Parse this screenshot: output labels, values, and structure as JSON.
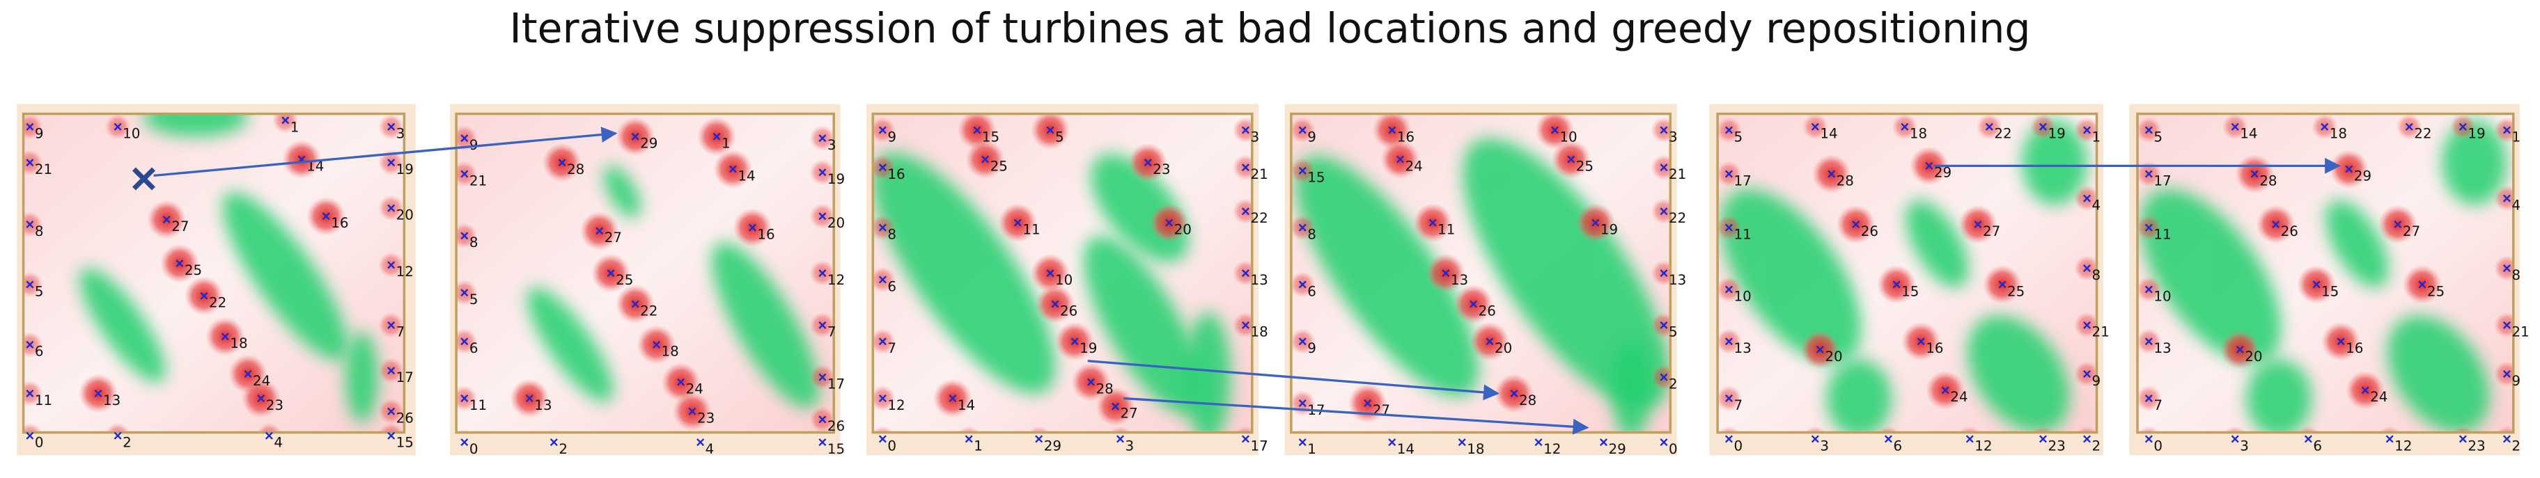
{
  "title": "Iterative suppression of turbines at bad locations and greedy repositioning",
  "panels": [
    {
      "turbines": [
        9,
        10,
        1,
        3,
        21,
        14,
        19,
        27,
        16,
        20,
        8,
        25,
        12,
        22,
        5,
        18,
        7,
        6,
        24,
        17,
        11,
        13,
        23,
        26,
        0,
        2,
        4,
        15
      ]
    },
    {
      "turbines": [
        9,
        28,
        29,
        1,
        3,
        21,
        14,
        19,
        27,
        16,
        20,
        8,
        25,
        12,
        22,
        5,
        18,
        7,
        6,
        24,
        17,
        11,
        13,
        23,
        26,
        0,
        2,
        4,
        15
      ]
    },
    {
      "turbines": [
        9,
        15,
        5,
        3,
        16,
        25,
        23,
        21,
        8,
        11,
        20,
        22,
        6,
        10,
        13,
        26,
        7,
        19,
        18,
        28,
        12,
        14,
        27,
        0,
        1,
        29,
        3,
        17
      ]
    },
    {
      "turbines": [
        9,
        16,
        10,
        3,
        24,
        25,
        21,
        15,
        11,
        19,
        22,
        8,
        13,
        13,
        26,
        6,
        20,
        5,
        9,
        28,
        2,
        17,
        27,
        1,
        14,
        18,
        12,
        29,
        0
      ]
    },
    {
      "turbines": [
        5,
        14,
        18,
        22,
        19,
        1,
        17,
        28,
        29,
        4,
        11,
        26,
        27,
        8,
        10,
        15,
        25,
        21,
        13,
        20,
        16,
        9,
        7,
        24,
        0,
        3,
        6,
        12,
        23,
        2
      ]
    },
    {
      "turbines": [
        5,
        14,
        18,
        22,
        19,
        1,
        17,
        28,
        29,
        4,
        11,
        26,
        27,
        8,
        10,
        15,
        25,
        21,
        13,
        20,
        16,
        9,
        7,
        24,
        0,
        3,
        6,
        12,
        23,
        2
      ]
    }
  ]
}
